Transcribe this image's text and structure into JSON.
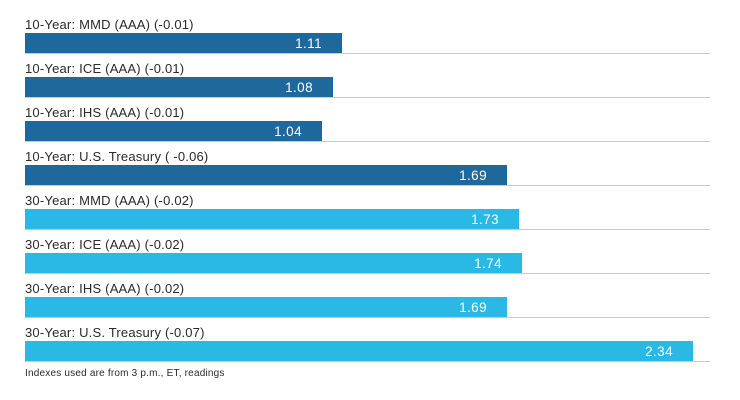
{
  "chart_data": {
    "type": "bar",
    "orientation": "horizontal",
    "title": "",
    "xlabel": "",
    "ylabel": "",
    "xlim": [
      0,
      2.4
    ],
    "grid": false,
    "axis_visible": false,
    "legend": "none",
    "colors": {
      "ten_year_bar": "#1f689c",
      "thirty_year_bar": "#2ab9e5",
      "baseline": "#c9c9c9",
      "value_text": "#ffffff",
      "label_text": "#2a2a2a"
    },
    "rows": [
      {
        "label": "10-Year: MMD (AAA) (-0.01)",
        "value": 1.11,
        "display": "1.11",
        "group": "ten_year"
      },
      {
        "label": "10-Year: ICE (AAA) (-0.01)",
        "value": 1.08,
        "display": "1.08",
        "group": "ten_year"
      },
      {
        "label": "10-Year: IHS (AAA) (-0.01)",
        "value": 1.04,
        "display": "1.04",
        "group": "ten_year"
      },
      {
        "label": "10-Year: U.S. Treasury ( -0.06)",
        "value": 1.69,
        "display": "1.69",
        "group": "ten_year"
      },
      {
        "label": "30-Year: MMD (AAA) (-0.02)",
        "value": 1.73,
        "display": "1.73",
        "group": "thirty_year"
      },
      {
        "label": "30-Year: ICE (AAA) (-0.02)",
        "value": 1.74,
        "display": "1.74",
        "group": "thirty_year"
      },
      {
        "label": "30-Year: IHS (AAA) (-0.02)",
        "value": 1.69,
        "display": "1.69",
        "group": "thirty_year"
      },
      {
        "label": "30-Year: U.S. Treasury (-0.07)",
        "value": 2.34,
        "display": "2.34",
        "group": "thirty_year"
      }
    ],
    "footnote": "Indexes used are from 3 p.m., ET, readings"
  }
}
